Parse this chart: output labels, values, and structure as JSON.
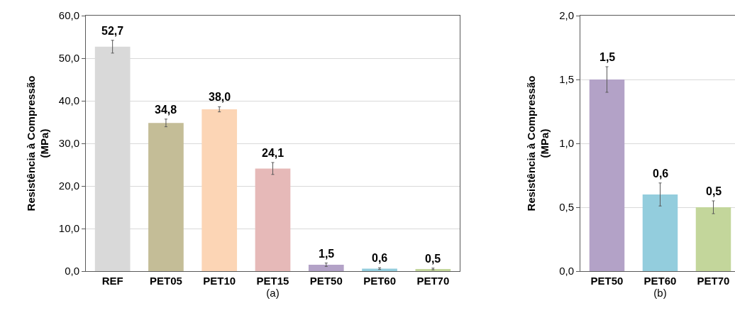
{
  "chart_data": [
    {
      "type": "bar",
      "xlabel": "(a)",
      "ylabel": "Resistência à Compressão\n(MPa)",
      "categories": [
        "REF",
        "PET05",
        "PET10",
        "PET15",
        "PET50",
        "PET60",
        "PET70"
      ],
      "values": [
        52.7,
        34.8,
        38.0,
        24.1,
        1.5,
        0.6,
        0.5
      ],
      "colors": [
        "#d9d9d9",
        "#c4bd97",
        "#fcd5b5",
        "#e6b9b8",
        "#b3a2c7",
        "#93cddd",
        "#c3d69b"
      ],
      "errors": [
        1.5,
        0.9,
        0.6,
        1.4,
        0.4,
        0.2,
        0.2
      ],
      "value_labels": [
        "52,7",
        "34,8",
        "38,0",
        "24,1",
        "1,5",
        "0,6",
        "0,5"
      ],
      "ylim": [
        0,
        60
      ],
      "yticks": [
        {
          "value": 0,
          "label": "0,0"
        },
        {
          "value": 10,
          "label": "10,0"
        },
        {
          "value": 20,
          "label": "20,0"
        },
        {
          "value": 30,
          "label": "30,0"
        },
        {
          "value": 40,
          "label": "40,0"
        },
        {
          "value": 50,
          "label": "50,0"
        },
        {
          "value": 60,
          "label": "60,0"
        }
      ],
      "grid": "y"
    },
    {
      "type": "bar",
      "xlabel": "(b)",
      "ylabel": "Resistência à Compressão\n(MPa)",
      "categories": [
        "PET50",
        "PET60",
        "PET70"
      ],
      "values": [
        1.5,
        0.6,
        0.5
      ],
      "colors": [
        "#b3a2c7",
        "#93cddd",
        "#c3d69b"
      ],
      "errors": [
        0.1,
        0.09,
        0.05
      ],
      "value_labels": [
        "1,5",
        "0,6",
        "0,5"
      ],
      "ylim": [
        0,
        2
      ],
      "yticks": [
        {
          "value": 0,
          "label": "0,0"
        },
        {
          "value": 0.5,
          "label": "0,5"
        },
        {
          "value": 1,
          "label": "1,0"
        },
        {
          "value": 1.5,
          "label": "1,5"
        },
        {
          "value": 2,
          "label": "2,0"
        }
      ],
      "grid": "y"
    }
  ]
}
